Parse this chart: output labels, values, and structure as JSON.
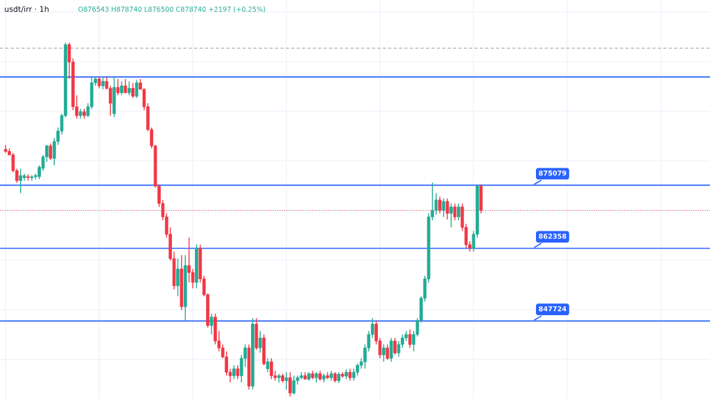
{
  "chart_data": {
    "type": "candlestick",
    "title": "usdt/irr · 1h",
    "subtitle": "O876543 H878740 L876500 C878740 +2197 (+0.25%)",
    "categories": [
      null,
      null,
      null,
      null,
      null,
      null,
      null,
      null,
      null,
      null,
      null,
      null,
      null,
      null,
      null,
      null,
      null,
      null,
      null,
      null,
      null,
      null,
      null,
      null,
      null,
      null,
      null,
      null,
      null,
      null,
      null,
      null,
      null,
      null,
      null,
      null,
      null,
      null,
      null,
      null,
      null,
      null,
      null,
      null,
      null,
      null,
      null,
      null,
      null,
      null,
      null,
      null,
      null,
      null,
      null,
      null,
      null,
      null,
      null,
      null,
      null,
      null,
      null,
      null,
      null,
      null,
      null,
      null,
      null,
      null,
      null,
      null,
      null,
      null,
      null,
      null,
      null,
      null,
      null,
      null,
      null,
      null,
      null,
      null,
      null,
      null,
      null,
      null,
      null,
      null,
      null,
      null,
      null,
      null,
      null,
      null,
      null,
      null,
      null,
      null,
      null,
      null,
      null,
      null,
      null,
      null,
      null,
      null,
      null,
      null,
      null,
      null,
      null,
      null,
      null,
      null,
      null,
      null,
      null,
      null,
      null,
      null,
      null,
      null,
      null,
      null,
      null,
      null
    ],
    "ohlc": [
      [
        882300,
        883200,
        881600,
        881900
      ],
      [
        881900,
        882500,
        881200,
        881200
      ],
      [
        881200,
        881600,
        877700,
        878000
      ],
      [
        878000,
        878400,
        875600,
        876000
      ],
      [
        876000,
        878400,
        873500,
        877000
      ],
      [
        876600,
        877400,
        876000,
        877000
      ],
      [
        876800,
        877300,
        876000,
        876600
      ],
      [
        876600,
        877100,
        876000,
        876800
      ],
      [
        876800,
        877400,
        876300,
        877000
      ],
      [
        876800,
        879100,
        876300,
        878700
      ],
      [
        878500,
        881200,
        878000,
        880800
      ],
      [
        880800,
        883200,
        879800,
        883000
      ],
      [
        883000,
        883500,
        880200,
        880500
      ],
      [
        880500,
        884600,
        879100,
        883900
      ],
      [
        883900,
        886700,
        883200,
        886000
      ],
      [
        886000,
        889500,
        885300,
        889100
      ],
      [
        889100,
        903800,
        888800,
        903400
      ],
      [
        903400,
        903800,
        896500,
        899900
      ],
      [
        899900,
        900600,
        890200,
        890900
      ],
      [
        890900,
        893200,
        888500,
        889100
      ],
      [
        889100,
        890500,
        888500,
        889900
      ],
      [
        889900,
        890500,
        888500,
        889100
      ],
      [
        889100,
        891600,
        888800,
        890900
      ],
      [
        890900,
        896900,
        890500,
        895700
      ],
      [
        895700,
        896900,
        895100,
        896500
      ],
      [
        896500,
        896900,
        894600,
        895100
      ],
      [
        895100,
        896900,
        894400,
        896000
      ],
      [
        896000,
        896900,
        894400,
        894600
      ],
      [
        894600,
        895100,
        889100,
        891600
      ],
      [
        889500,
        896900,
        888800,
        894800
      ],
      [
        894800,
        896500,
        893200,
        893700
      ],
      [
        893700,
        896000,
        893200,
        895100
      ],
      [
        895100,
        896500,
        893700,
        893700
      ],
      [
        893700,
        896000,
        893200,
        894600
      ],
      [
        894600,
        895700,
        892700,
        893000
      ],
      [
        893000,
        896300,
        892700,
        895700
      ],
      [
        895700,
        896500,
        894400,
        894400
      ],
      [
        894400,
        894600,
        890200,
        890900
      ],
      [
        890900,
        891600,
        886000,
        886300
      ],
      [
        886300,
        886700,
        882500,
        883000
      ],
      [
        883000,
        883200,
        874600,
        874900
      ],
      [
        874900,
        875200,
        870700,
        871400
      ],
      [
        871400,
        872100,
        868000,
        868700
      ],
      [
        868700,
        869400,
        864500,
        865200
      ],
      [
        865200,
        866600,
        859900,
        860300
      ],
      [
        860300,
        861700,
        854100,
        854800
      ],
      [
        854800,
        860300,
        852700,
        858200
      ],
      [
        858200,
        861000,
        849900,
        850600
      ],
      [
        850600,
        861000,
        847800,
        858900
      ],
      [
        858900,
        864500,
        855500,
        857500
      ],
      [
        857500,
        858200,
        854300,
        855500
      ],
      [
        855500,
        863100,
        854300,
        862400
      ],
      [
        862400,
        863100,
        855500,
        856200
      ],
      [
        856200,
        856800,
        852700,
        853000
      ],
      [
        853000,
        853300,
        846400,
        846800
      ],
      [
        846800,
        849200,
        845000,
        848500
      ],
      [
        848500,
        849200,
        843000,
        843700
      ],
      [
        843700,
        845700,
        841600,
        842300
      ],
      [
        842300,
        843000,
        840200,
        840500
      ],
      [
        840500,
        841600,
        836700,
        837400
      ],
      [
        837400,
        838100,
        835300,
        836700
      ],
      [
        836700,
        838800,
        836000,
        838100
      ],
      [
        838100,
        838800,
        836000,
        836700
      ],
      [
        836700,
        840900,
        835300,
        840200
      ],
      [
        840200,
        843000,
        838500,
        842300
      ],
      [
        842300,
        843000,
        833900,
        834600
      ],
      [
        834600,
        848300,
        833900,
        847100
      ],
      [
        847100,
        848300,
        841900,
        842300
      ],
      [
        842300,
        845700,
        841300,
        844300
      ],
      [
        844300,
        845000,
        838800,
        839100
      ],
      [
        838100,
        840200,
        837400,
        839500
      ],
      [
        839500,
        840200,
        836000,
        836700
      ],
      [
        836700,
        837700,
        835700,
        836300
      ],
      [
        836300,
        837100,
        835300,
        836700
      ],
      [
        836700,
        837100,
        835300,
        835700
      ],
      [
        835700,
        837400,
        833900,
        836300
      ],
      [
        836300,
        837400,
        832500,
        833200
      ],
      [
        833200,
        836700,
        832900,
        835700
      ],
      [
        835700,
        836700,
        834900,
        836300
      ],
      [
        836300,
        837400,
        836000,
        836700
      ],
      [
        836700,
        837400,
        836000,
        836000
      ],
      [
        836000,
        837400,
        835700,
        837100
      ],
      [
        837100,
        837700,
        836000,
        836300
      ],
      [
        836300,
        837400,
        835300,
        837100
      ],
      [
        837100,
        837700,
        835700,
        836000
      ],
      [
        836000,
        837100,
        835300,
        836700
      ],
      [
        836700,
        837400,
        836000,
        836300
      ],
      [
        836300,
        837700,
        835700,
        837100
      ],
      [
        837100,
        837400,
        835300,
        835700
      ],
      [
        835700,
        837400,
        835200,
        837000
      ],
      [
        837000,
        837400,
        836300,
        836600
      ],
      [
        836600,
        838000,
        836000,
        837400
      ],
      [
        837400,
        838100,
        835700,
        836300
      ],
      [
        836300,
        838100,
        835700,
        837400
      ],
      [
        837400,
        839100,
        836700,
        838800
      ],
      [
        838800,
        840200,
        838100,
        839500
      ],
      [
        839500,
        843000,
        838100,
        842300
      ],
      [
        842300,
        845700,
        841600,
        845000
      ],
      [
        845000,
        848300,
        844300,
        847100
      ],
      [
        847100,
        847800,
        843000,
        843700
      ],
      [
        843700,
        844300,
        840200,
        840900
      ],
      [
        840900,
        843000,
        839500,
        842300
      ],
      [
        842300,
        843000,
        839900,
        840200
      ],
      [
        840200,
        844300,
        839500,
        843700
      ],
      [
        843700,
        844300,
        840900,
        841300
      ],
      [
        841300,
        843700,
        840500,
        843000
      ],
      [
        843000,
        845000,
        842300,
        844300
      ],
      [
        844300,
        845700,
        843700,
        845000
      ],
      [
        845000,
        846000,
        842300,
        843000
      ],
      [
        843000,
        845700,
        841600,
        845000
      ],
      [
        845000,
        848300,
        844600,
        847800
      ],
      [
        847800,
        852700,
        847400,
        852300
      ],
      [
        852300,
        856800,
        851600,
        856200
      ],
      [
        856200,
        869400,
        855500,
        868700
      ],
      [
        868700,
        875600,
        868000,
        870000
      ],
      [
        870000,
        873500,
        869100,
        872100
      ],
      [
        872100,
        872800,
        869400,
        870000
      ],
      [
        870000,
        872400,
        868700,
        871800
      ],
      [
        871800,
        872400,
        868200,
        869400
      ],
      [
        869400,
        871400,
        866600,
        870700
      ],
      [
        870700,
        871400,
        868000,
        868700
      ],
      [
        868700,
        871400,
        868000,
        870700
      ],
      [
        870700,
        871400,
        865900,
        866600
      ],
      [
        866600,
        867300,
        862400,
        863100
      ],
      [
        863100,
        863800,
        861700,
        862400
      ],
      [
        862400,
        865900,
        861700,
        865200
      ],
      [
        865200,
        875200,
        864500,
        874900
      ],
      [
        874900,
        875200,
        869400,
        870000
      ]
    ],
    "colors": [
      "#f23645",
      "#f23645",
      "#f23645",
      "#f23645",
      "#22ab94",
      "#22ab94",
      "#f23645",
      "#22ab94",
      "#22ab94",
      "#22ab94",
      "#22ab94",
      "#22ab94",
      "#f23645",
      "#22ab94",
      "#22ab94",
      "#22ab94",
      "#22ab94",
      "#f23645",
      "#f23645",
      "#f23645",
      "#22ab94",
      "#f23645",
      "#22ab94",
      "#22ab94",
      "#22ab94",
      "#f23645",
      "#22ab94",
      "#f23645",
      "#f23645",
      "#22ab94",
      "#f23645",
      "#22ab94",
      "#f23645",
      "#22ab94",
      "#f23645",
      "#22ab94",
      "#f23645",
      "#f23645",
      "#f23645",
      "#f23645",
      "#f23645",
      "#f23645",
      "#f23645",
      "#f23645",
      "#f23645",
      "#f23645",
      "#22ab94",
      "#f23645",
      "#22ab94",
      "#f23645",
      "#f23645",
      "#22ab94",
      "#f23645",
      "#f23645",
      "#f23645",
      "#22ab94",
      "#f23645",
      "#f23645",
      "#f23645",
      "#f23645",
      "#f23645",
      "#22ab94",
      "#f23645",
      "#22ab94",
      "#22ab94",
      "#f23645",
      "#22ab94",
      "#f23645",
      "#22ab94",
      "#f23645",
      "#22ab94",
      "#f23645",
      "#f23645",
      "#22ab94",
      "#f23645",
      "#22ab94",
      "#f23645",
      "#22ab94",
      "#22ab94",
      "#22ab94",
      "#f23645",
      "#22ab94",
      "#f23645",
      "#22ab94",
      "#f23645",
      "#22ab94",
      "#f23645",
      "#22ab94",
      "#f23645",
      "#22ab94",
      "#f23645",
      "#22ab94",
      "#f23645",
      "#22ab94",
      "#22ab94",
      "#22ab94",
      "#22ab94",
      "#22ab94",
      "#22ab94",
      "#f23645",
      "#f23645",
      "#22ab94",
      "#f23645",
      "#22ab94",
      "#f23645",
      "#22ab94",
      "#22ab94",
      "#22ab94",
      "#f23645",
      "#22ab94",
      "#22ab94",
      "#22ab94",
      "#22ab94",
      "#22ab94",
      "#22ab94",
      "#22ab94",
      "#f23645",
      "#22ab94",
      "#f23645",
      "#22ab94",
      "#f23645",
      "#22ab94",
      "#f23645",
      "#f23645",
      "#f23645",
      "#22ab94",
      "#22ab94",
      "#f23645"
    ],
    "ylim": [
      832000,
      912400
    ],
    "tick_labels": false,
    "grid": true,
    "ref_lines": [
      {
        "axis": "y",
        "value": 902700,
        "color": "#9e9e9e",
        "line_style": "dashed"
      },
      {
        "axis": "y",
        "value": 896900,
        "color": "#2962ff"
      },
      {
        "axis": "y",
        "value": 875079,
        "label": "875079",
        "color": "#2962ff"
      },
      {
        "axis": "y",
        "value": 870000,
        "color": "#f23645",
        "line_style": "dotted"
      },
      {
        "axis": "y",
        "value": 862358,
        "label": "862358",
        "color": "#2962ff"
      },
      {
        "axis": "y",
        "value": 847724,
        "label": "847724",
        "color": "#2962ff"
      }
    ]
  }
}
